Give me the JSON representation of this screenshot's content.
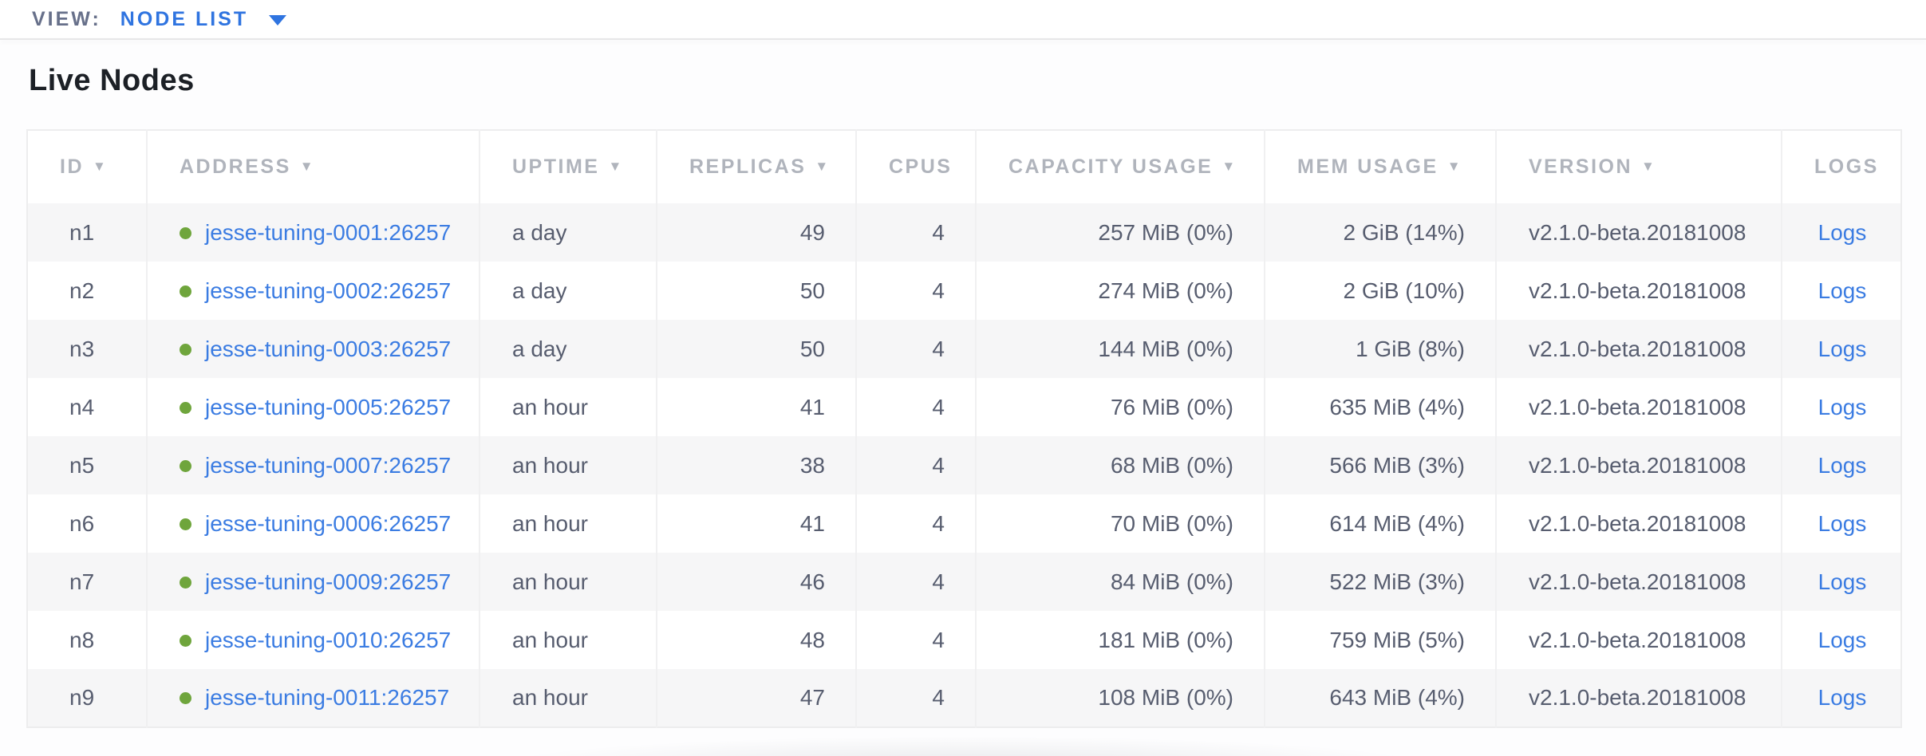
{
  "view_bar": {
    "label": "VIEW:",
    "selected": "NODE LIST"
  },
  "page": {
    "title": "Live Nodes"
  },
  "table": {
    "columns": [
      {
        "key": "id",
        "label": "ID",
        "sortable": true
      },
      {
        "key": "address",
        "label": "ADDRESS",
        "sortable": true
      },
      {
        "key": "uptime",
        "label": "UPTIME",
        "sortable": true
      },
      {
        "key": "replicas",
        "label": "REPLICAS",
        "sortable": true
      },
      {
        "key": "cpus",
        "label": "CPUS",
        "sortable": false
      },
      {
        "key": "capacity",
        "label": "CAPACITY USAGE",
        "sortable": true
      },
      {
        "key": "mem",
        "label": "MEM USAGE",
        "sortable": true
      },
      {
        "key": "version",
        "label": "VERSION",
        "sortable": true
      },
      {
        "key": "logs",
        "label": "LOGS",
        "sortable": false
      }
    ],
    "rows": [
      {
        "id": "n1",
        "status": "healthy",
        "address": "jesse-tuning-0001:26257",
        "uptime": "a day",
        "replicas": "49",
        "cpus": "4",
        "capacity": "257 MiB (0%)",
        "mem": "2 GiB (14%)",
        "version": "v2.1.0-beta.20181008",
        "logs": "Logs"
      },
      {
        "id": "n2",
        "status": "healthy",
        "address": "jesse-tuning-0002:26257",
        "uptime": "a day",
        "replicas": "50",
        "cpus": "4",
        "capacity": "274 MiB (0%)",
        "mem": "2 GiB (10%)",
        "version": "v2.1.0-beta.20181008",
        "logs": "Logs"
      },
      {
        "id": "n3",
        "status": "healthy",
        "address": "jesse-tuning-0003:26257",
        "uptime": "a day",
        "replicas": "50",
        "cpus": "4",
        "capacity": "144 MiB (0%)",
        "mem": "1 GiB (8%)",
        "version": "v2.1.0-beta.20181008",
        "logs": "Logs"
      },
      {
        "id": "n4",
        "status": "healthy",
        "address": "jesse-tuning-0005:26257",
        "uptime": "an hour",
        "replicas": "41",
        "cpus": "4",
        "capacity": "76 MiB (0%)",
        "mem": "635 MiB (4%)",
        "version": "v2.1.0-beta.20181008",
        "logs": "Logs"
      },
      {
        "id": "n5",
        "status": "healthy",
        "address": "jesse-tuning-0007:26257",
        "uptime": "an hour",
        "replicas": "38",
        "cpus": "4",
        "capacity": "68 MiB (0%)",
        "mem": "566 MiB (3%)",
        "version": "v2.1.0-beta.20181008",
        "logs": "Logs"
      },
      {
        "id": "n6",
        "status": "healthy",
        "address": "jesse-tuning-0006:26257",
        "uptime": "an hour",
        "replicas": "41",
        "cpus": "4",
        "capacity": "70 MiB (0%)",
        "mem": "614 MiB (4%)",
        "version": "v2.1.0-beta.20181008",
        "logs": "Logs"
      },
      {
        "id": "n7",
        "status": "healthy",
        "address": "jesse-tuning-0009:26257",
        "uptime": "an hour",
        "replicas": "46",
        "cpus": "4",
        "capacity": "84 MiB (0%)",
        "mem": "522 MiB (3%)",
        "version": "v2.1.0-beta.20181008",
        "logs": "Logs"
      },
      {
        "id": "n8",
        "status": "healthy",
        "address": "jesse-tuning-0010:26257",
        "uptime": "an hour",
        "replicas": "48",
        "cpus": "4",
        "capacity": "181 MiB (0%)",
        "mem": "759 MiB (5%)",
        "version": "v2.1.0-beta.20181008",
        "logs": "Logs"
      },
      {
        "id": "n9",
        "status": "healthy",
        "address": "jesse-tuning-0011:26257",
        "uptime": "an hour",
        "replicas": "47",
        "cpus": "4",
        "capacity": "108 MiB (0%)",
        "mem": "643 MiB (4%)",
        "version": "v2.1.0-beta.20181008",
        "logs": "Logs"
      }
    ]
  },
  "colors": {
    "accent_blue": "#2f74e0",
    "link_blue": "#3b7ce2",
    "healthy_green": "#6fa53c",
    "header_gray": "#b0b4bc",
    "body_text": "#575d6f",
    "row_stripe": "#f6f6f7",
    "border": "#ededee"
  }
}
